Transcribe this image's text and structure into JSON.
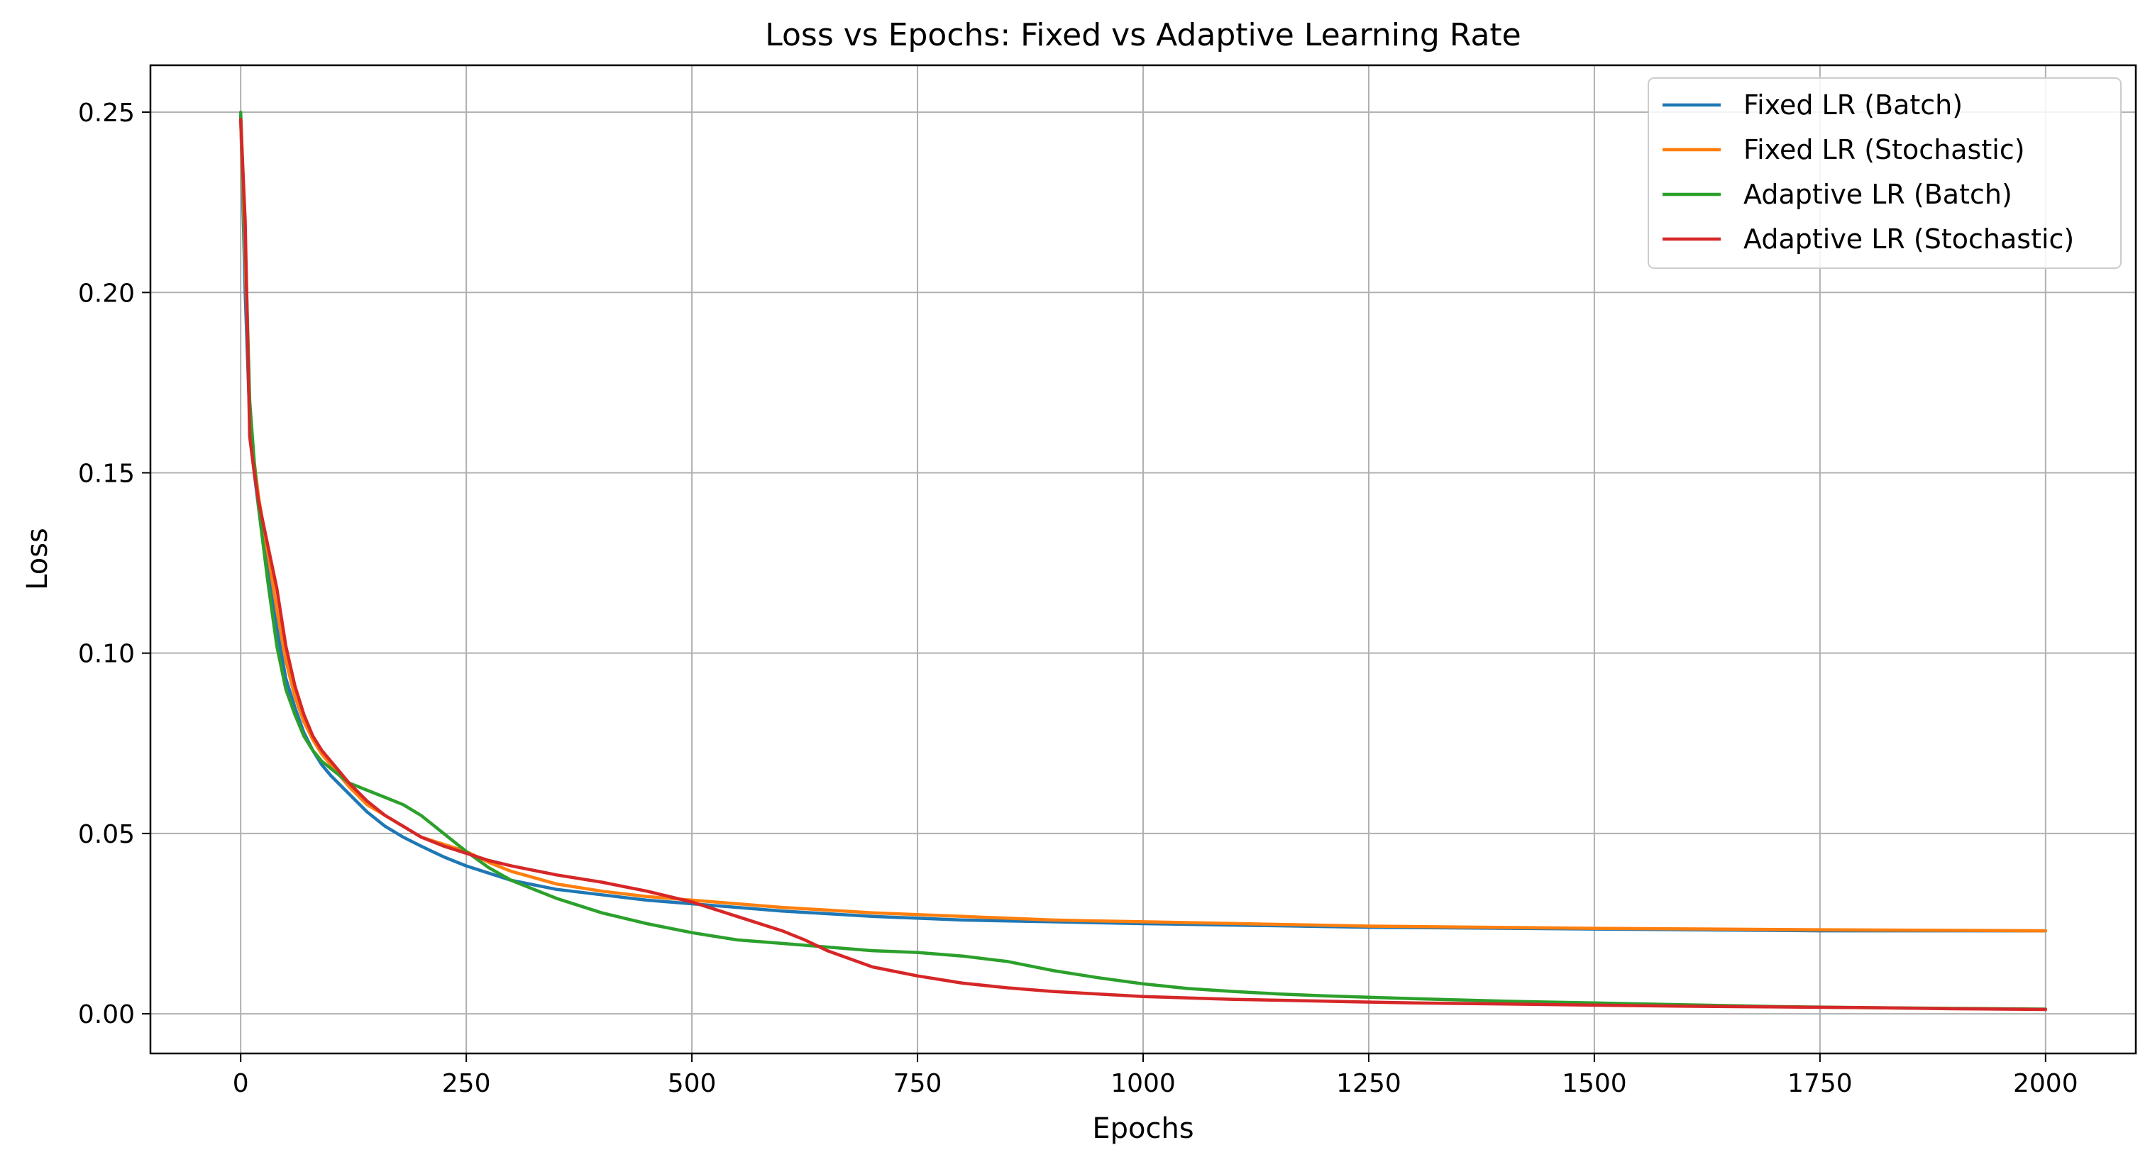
{
  "chart_data": {
    "type": "line",
    "title": "Loss vs Epochs: Fixed vs Adaptive Learning Rate",
    "xlabel": "Epochs",
    "ylabel": "Loss",
    "xlim": [
      -100,
      2100
    ],
    "ylim": [
      -0.011,
      0.263
    ],
    "xticks": [
      0,
      250,
      500,
      750,
      1000,
      1250,
      1500,
      1750,
      2000
    ],
    "yticks": [
      0.0,
      0.05,
      0.1,
      0.15,
      0.2,
      0.25
    ],
    "xtick_labels": [
      "0",
      "250",
      "500",
      "750",
      "1000",
      "1250",
      "1500",
      "1750",
      "2000"
    ],
    "ytick_labels": [
      "0.00",
      "0.05",
      "0.10",
      "0.15",
      "0.20",
      "0.25"
    ],
    "grid": true,
    "legend_position": "top-right",
    "series": [
      {
        "name": "Fixed LR (Batch)",
        "color": "#1f77b4",
        "x": [
          0,
          5,
          10,
          15,
          20,
          30,
          40,
          50,
          60,
          70,
          80,
          90,
          100,
          120,
          140,
          160,
          180,
          200,
          225,
          250,
          275,
          300,
          350,
          400,
          450,
          500,
          600,
          700,
          800,
          900,
          1000,
          1250,
          1500,
          1750,
          2000
        ],
        "y": [
          0.249,
          0.2,
          0.165,
          0.15,
          0.14,
          0.125,
          0.107,
          0.093,
          0.085,
          0.078,
          0.073,
          0.069,
          0.066,
          0.061,
          0.056,
          0.052,
          0.049,
          0.0465,
          0.0435,
          0.041,
          0.039,
          0.037,
          0.0345,
          0.033,
          0.0315,
          0.0305,
          0.0285,
          0.027,
          0.026,
          0.0255,
          0.025,
          0.024,
          0.0235,
          0.023,
          0.023
        ]
      },
      {
        "name": "Fixed LR (Stochastic)",
        "color": "#ff7f0e",
        "x": [
          0,
          5,
          10,
          15,
          20,
          30,
          40,
          50,
          60,
          70,
          80,
          90,
          100,
          120,
          140,
          160,
          180,
          200,
          225,
          250,
          275,
          300,
          350,
          400,
          450,
          500,
          600,
          700,
          800,
          900,
          1000,
          1250,
          1500,
          1750,
          2000
        ],
        "y": [
          0.248,
          0.21,
          0.168,
          0.153,
          0.143,
          0.128,
          0.112,
          0.098,
          0.088,
          0.081,
          0.076,
          0.072,
          0.069,
          0.063,
          0.058,
          0.055,
          0.052,
          0.049,
          0.047,
          0.045,
          0.042,
          0.0395,
          0.036,
          0.034,
          0.0325,
          0.0315,
          0.0295,
          0.028,
          0.027,
          0.026,
          0.0255,
          0.0243,
          0.0237,
          0.0233,
          0.023
        ]
      },
      {
        "name": "Adaptive LR (Batch)",
        "color": "#2ca02c",
        "x": [
          0,
          5,
          10,
          15,
          20,
          30,
          40,
          50,
          60,
          70,
          80,
          90,
          100,
          120,
          140,
          160,
          180,
          200,
          225,
          250,
          275,
          300,
          350,
          400,
          450,
          500,
          550,
          600,
          650,
          700,
          750,
          800,
          850,
          900,
          950,
          1000,
          1050,
          1100,
          1150,
          1200,
          1300,
          1400,
          1500,
          1600,
          1700,
          1800,
          1900,
          2000
        ],
        "y": [
          0.25,
          0.215,
          0.17,
          0.153,
          0.14,
          0.12,
          0.102,
          0.09,
          0.083,
          0.077,
          0.073,
          0.07,
          0.068,
          0.064,
          0.062,
          0.06,
          0.058,
          0.055,
          0.05,
          0.045,
          0.0405,
          0.037,
          0.032,
          0.028,
          0.025,
          0.0225,
          0.0205,
          0.0195,
          0.0185,
          0.0175,
          0.017,
          0.016,
          0.0145,
          0.012,
          0.01,
          0.0083,
          0.007,
          0.0062,
          0.0055,
          0.005,
          0.0042,
          0.0035,
          0.003,
          0.0025,
          0.002,
          0.0017,
          0.0015,
          0.0013
        ]
      },
      {
        "name": "Adaptive LR (Stochastic)",
        "color": "#d62728",
        "x": [
          0,
          5,
          10,
          15,
          20,
          30,
          40,
          50,
          60,
          70,
          80,
          90,
          100,
          120,
          140,
          160,
          180,
          200,
          225,
          250,
          275,
          300,
          350,
          400,
          450,
          500,
          550,
          600,
          625,
          650,
          700,
          750,
          800,
          850,
          900,
          1000,
          1100,
          1200,
          1300,
          1400,
          1500,
          1600,
          1700,
          1800,
          1900,
          2000
        ],
        "y": [
          0.248,
          0.22,
          0.16,
          0.15,
          0.142,
          0.13,
          0.118,
          0.102,
          0.091,
          0.083,
          0.077,
          0.073,
          0.07,
          0.064,
          0.059,
          0.055,
          0.052,
          0.049,
          0.0465,
          0.0445,
          0.0425,
          0.041,
          0.0385,
          0.0365,
          0.034,
          0.031,
          0.027,
          0.023,
          0.0205,
          0.0175,
          0.013,
          0.0105,
          0.0085,
          0.0072,
          0.0062,
          0.0048,
          0.004,
          0.0035,
          0.003,
          0.0027,
          0.0024,
          0.0021,
          0.0019,
          0.0017,
          0.0014,
          0.0012
        ]
      }
    ]
  }
}
